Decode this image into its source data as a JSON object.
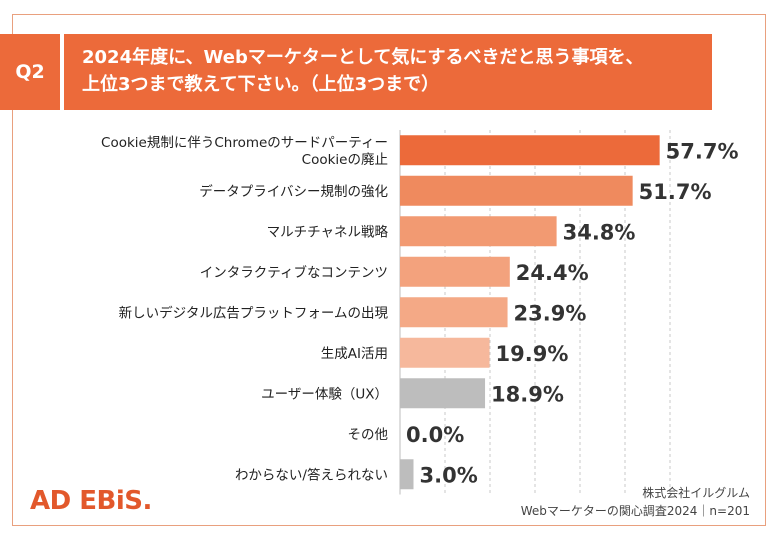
{
  "header": {
    "question_badge": "Q2",
    "title_line1": "2024年度に、Webマーケターとして気にするべきだと思う事項を、",
    "title_line2": "上位3つまで教えて下さい。（上位3つまで）"
  },
  "footer": {
    "logo": "AD EBiS.",
    "company": "株式会社イルグルム",
    "survey": "Webマーケターの関心調査2024｜n=201"
  },
  "colors": {
    "bar_top": "#ec6a3a",
    "bar_2": "#ef8a5e",
    "bar_3": "#f29a72",
    "bar_4": "#f3a27d",
    "bar_5": "#f4a986",
    "bar_6": "#f6b89c",
    "bar_gray": "#bdbdbd",
    "grid": "#c8c8c8"
  },
  "chart_data": {
    "type": "bar",
    "orientation": "horizontal",
    "categories": [
      [
        "Cookie規制に伴うChromeのサードパーティー",
        "Cookieの廃止"
      ],
      [
        "データプライバシー規制の強化"
      ],
      [
        "マルチチャネル戦略"
      ],
      [
        "インタラクティブなコンテンツ"
      ],
      [
        "新しいデジタル広告プラットフォームの出現"
      ],
      [
        "生成AI活用"
      ],
      [
        "ユーザー体験（UX）"
      ],
      [
        "その他"
      ],
      [
        "わからない/答えられない"
      ]
    ],
    "values": [
      57.7,
      51.7,
      34.8,
      24.4,
      23.9,
      19.9,
      18.9,
      0.0,
      3.0
    ],
    "labels": [
      "57.7%",
      "51.7%",
      "34.8%",
      "24.4%",
      "23.9%",
      "19.9%",
      "18.9%",
      "0.0%",
      "3.0%"
    ],
    "bar_colors": [
      "#ec6a3a",
      "#ef8a5e",
      "#f29a72",
      "#f3a27d",
      "#f4a986",
      "#f6b89c",
      "#bdbdbd",
      "#bdbdbd",
      "#bdbdbd"
    ],
    "xlim": [
      0,
      60
    ],
    "grid_step": 10,
    "grid": true
  }
}
